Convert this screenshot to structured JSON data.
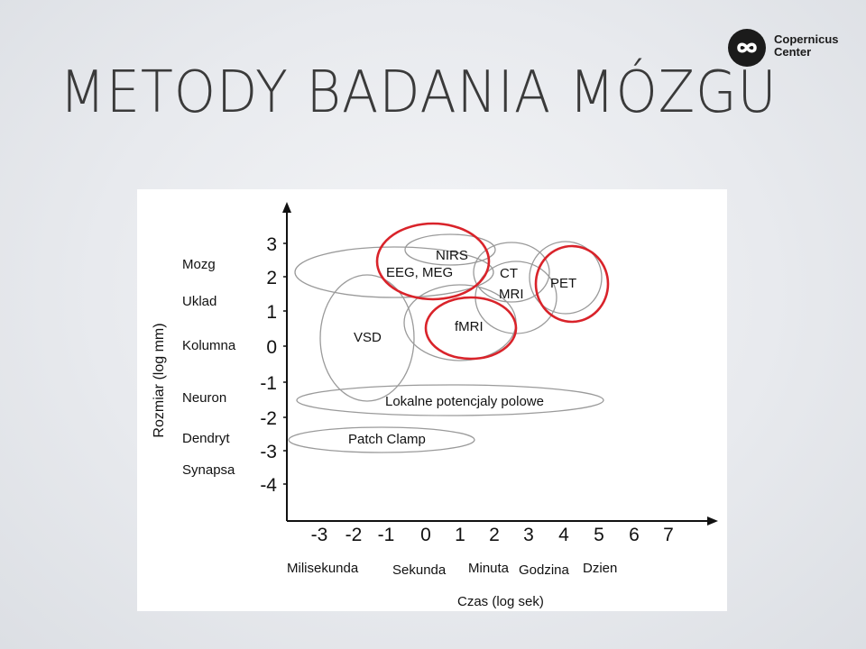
{
  "slide": {
    "title": "METODY BADANIA MÓZGU",
    "logo": {
      "line1": "Copernicus",
      "line2": "Center",
      "icon": "infinity-logo-icon"
    }
  },
  "chart": {
    "y_title": "Rozmiar (log mm)",
    "x_title": "Czas (log sek)",
    "y_ticks": [
      "3",
      "2",
      "1",
      "0",
      "-1",
      "-2",
      "-3",
      "-4"
    ],
    "x_ticks": [
      "-3",
      "-2",
      "-1",
      "0",
      "1",
      "2",
      "3",
      "4",
      "5",
      "6",
      "7"
    ],
    "y_categories": [
      "Mozg",
      "Uklad",
      "Kolumna",
      "Neuron",
      "Dendryt",
      "Synapsa"
    ],
    "x_categories": [
      "Milisekunda",
      "Sekunda",
      "Minuta",
      "Godzina",
      "Dzien"
    ],
    "methods": [
      "NIRS",
      "EEG, MEG",
      "CT",
      "MRI",
      "PET",
      "fMRI",
      "VSD",
      "Lokalne potencjaly polowe",
      "Patch Clamp"
    ],
    "highlight_color": "#d9232a"
  }
}
